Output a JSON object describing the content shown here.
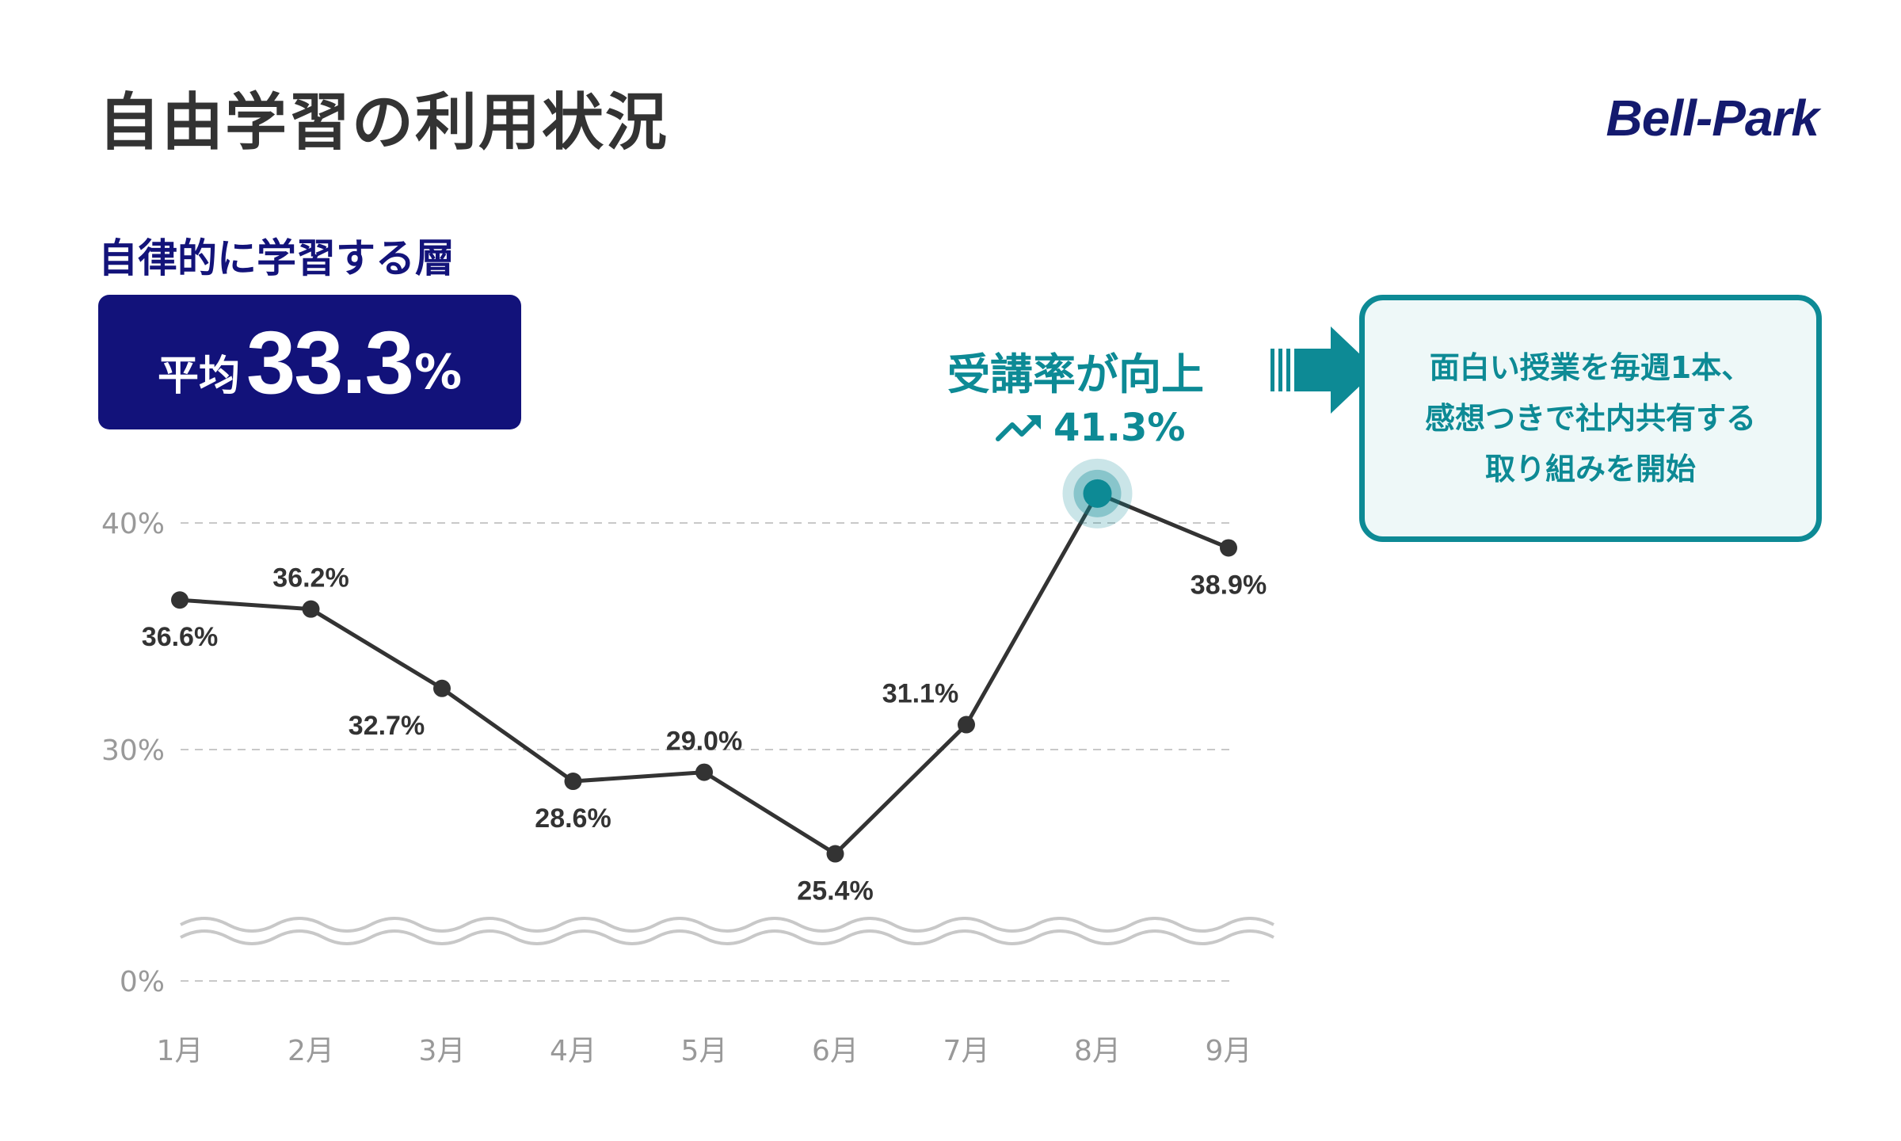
{
  "header": {
    "title": "自由学習の利用状況",
    "logo_text": "Bell-Park"
  },
  "summary": {
    "subtitle": "自律的に学習する層",
    "average_label": "平均",
    "average_value": "33.3",
    "average_unit": "%"
  },
  "callout": {
    "headline": "受講率が向上",
    "value_text": "41.3%",
    "trend_icon": "trending-up-icon",
    "note_lines": [
      "面白い授業を毎週1本、",
      "感想つきで社内共有する",
      "取り組みを開始"
    ]
  },
  "colors": {
    "navy": "#12127a",
    "teal": "#0d8a95",
    "line": "#333333",
    "grid": "#c8c8c8",
    "axis_text": "#999999"
  },
  "chart_data": {
    "type": "line",
    "categories": [
      "1月",
      "2月",
      "3月",
      "4月",
      "5月",
      "6月",
      "7月",
      "8月",
      "9月"
    ],
    "series": [
      {
        "values": [
          36.6,
          36.2,
          32.7,
          28.6,
          29.0,
          25.4,
          31.1,
          41.3,
          38.9
        ]
      }
    ],
    "data_labels": [
      "36.6%",
      "36.2%",
      "32.7%",
      "28.6%",
      "29.0%",
      "25.4%",
      "31.1%",
      "",
      "38.9%"
    ],
    "y_ticks": [
      {
        "value": 40,
        "label": "40%"
      },
      {
        "value": 30,
        "label": "30%"
      },
      {
        "value": 0,
        "label": "0%"
      }
    ],
    "axis_break": true,
    "highlight_index": 7,
    "grid": true
  }
}
